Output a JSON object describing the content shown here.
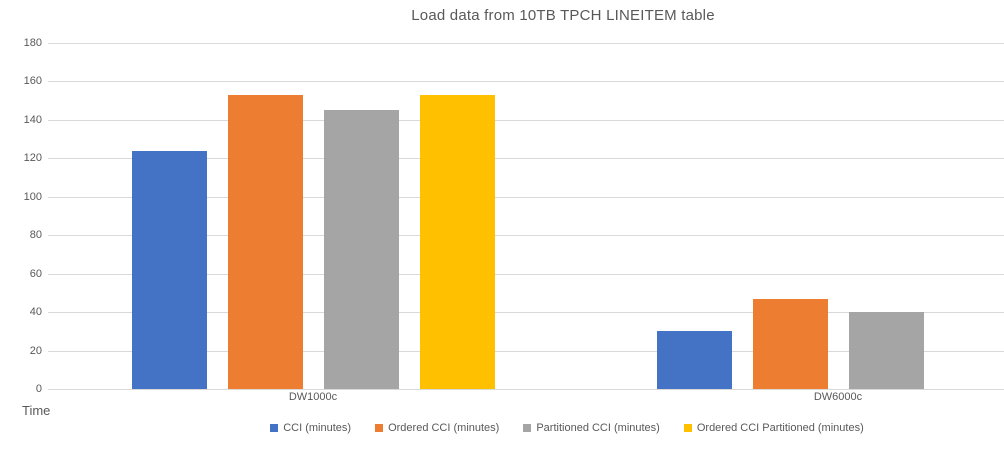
{
  "chart_data": {
    "type": "bar",
    "title": "Load data from 10TB TPCH LINEITEM table",
    "ylabel": "Time",
    "xlabel": "",
    "ylim": [
      0,
      180
    ],
    "ytick_step": 20,
    "yticks": [
      0,
      20,
      40,
      60,
      80,
      100,
      120,
      140,
      160,
      180
    ],
    "grid": true,
    "legend_position": "bottom",
    "categories": [
      "DW1000c",
      "DW6000c"
    ],
    "series": [
      {
        "name": "CCI (minutes)",
        "color": "#4472C4",
        "values": [
          124,
          30
        ]
      },
      {
        "name": "Ordered CCI (minutes)",
        "color": "#ED7D31",
        "values": [
          153,
          47
        ]
      },
      {
        "name": "Partitioned CCI (minutes)",
        "color": "#A5A5A5",
        "values": [
          145,
          40
        ]
      },
      {
        "name": "Ordered CCI Partitioned (minutes)",
        "color": "#FFC000",
        "values": [
          153,
          null
        ]
      }
    ]
  },
  "colors": {
    "gridline": "#D9D9D9",
    "axis_text": "#595959",
    "title_text": "#595959",
    "background": "#FFFFFF"
  }
}
